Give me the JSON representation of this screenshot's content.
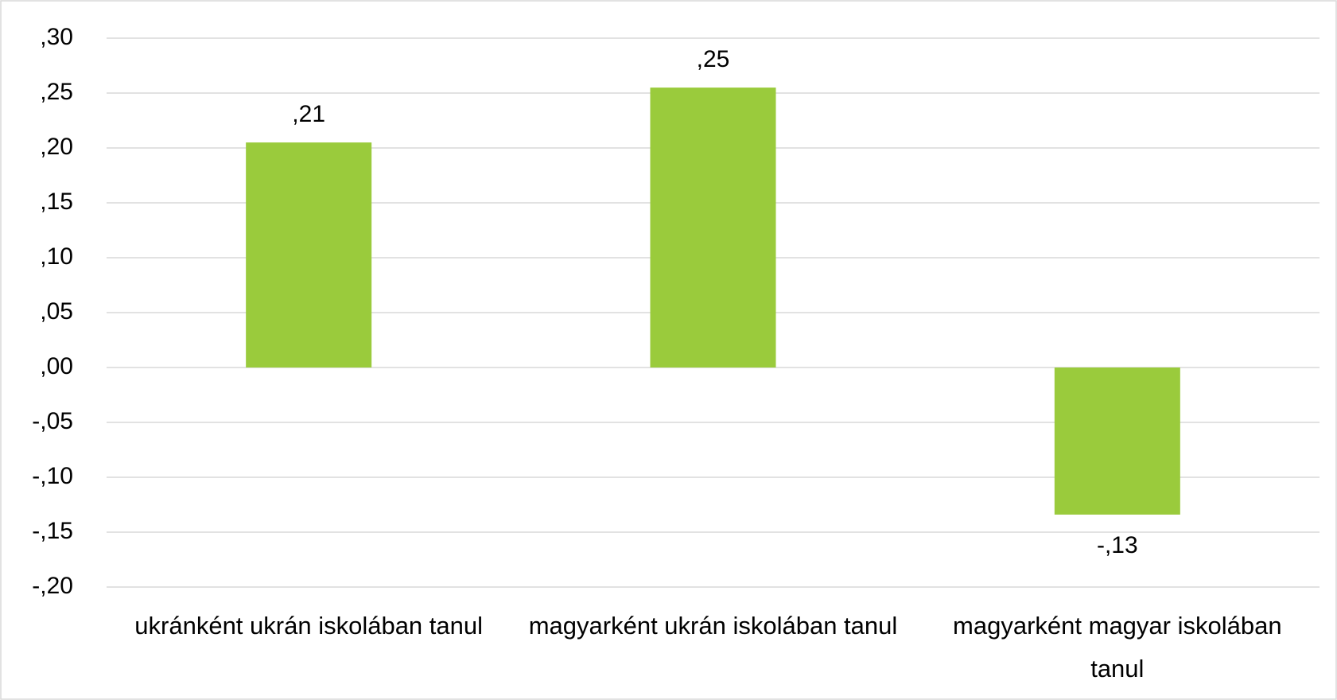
{
  "chart_data": {
    "type": "bar",
    "categories": [
      "ukránként ukrán iskolában tanul",
      "magyarként ukrán iskolában tanul",
      "magyarként magyar iskolában tanul"
    ],
    "values": [
      0.205,
      0.255,
      -0.134
    ],
    "value_labels": [
      ",21",
      ",25",
      "-,13"
    ],
    "color": "#9acb3c",
    "ylim": [
      -0.2,
      0.3
    ],
    "yticks": [
      {
        "value": -0.2,
        "label": "-,20"
      },
      {
        "value": -0.15,
        "label": "-,15"
      },
      {
        "value": -0.1,
        "label": "-,10"
      },
      {
        "value": -0.05,
        "label": "-,05"
      },
      {
        "value": 0,
        "label": ",00"
      },
      {
        "value": 0.05,
        "label": ",05"
      },
      {
        "value": 0.1,
        "label": ",10"
      },
      {
        "value": 0.15,
        "label": ",15"
      },
      {
        "value": 0.2,
        "label": ",20"
      },
      {
        "value": 0.25,
        "label": ",25"
      },
      {
        "value": 0.3,
        "label": ",30"
      }
    ],
    "grid": true
  }
}
